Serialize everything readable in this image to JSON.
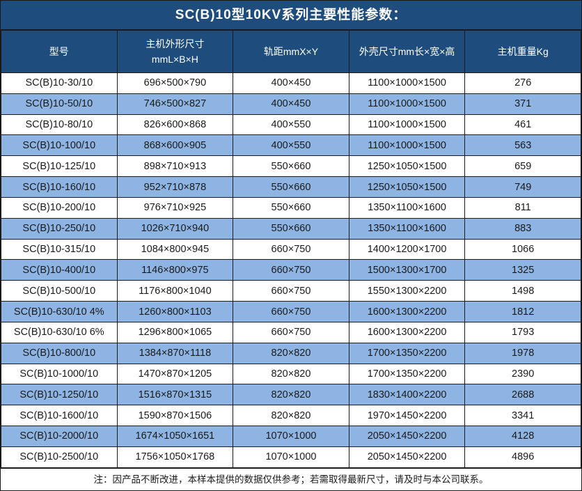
{
  "title": "SC(B)10型10KV系列主要性能参数：",
  "colors": {
    "header_bg": "#1E4C7C",
    "row_bg": "#FFFFFF",
    "row_alt_bg": "#8DB4E2",
    "border": "#1A1A1A",
    "header_text": "#FFFFFF",
    "body_text": "#1A1A1A"
  },
  "table": {
    "columns": [
      {
        "label": "型号",
        "sub": ""
      },
      {
        "label": "主机外形尺寸",
        "sub": "mmL×B×H"
      },
      {
        "label": "轨距mmX×Y",
        "sub": ""
      },
      {
        "label": "外壳尺寸mm长×宽×高",
        "sub": ""
      },
      {
        "label": "主机重量Kg",
        "sub": ""
      }
    ],
    "rows": [
      [
        "SC(B)10-30/10",
        "696×500×790",
        "400×450",
        "1100×1000×1500",
        "276"
      ],
      [
        "SC(B)10-50/10",
        "746×500×827",
        "400×450",
        "1100×1000×1500",
        "371"
      ],
      [
        "SC(B)10-80/10",
        "826×600×868",
        "400×550",
        "1100×1000×1500",
        "461"
      ],
      [
        "SC(B)10-100/10",
        "868×600×905",
        "400×550",
        "1100×1000×1500",
        "563"
      ],
      [
        "SC(B)10-125/10",
        "898×710×913",
        "550×660",
        "1250×1050×1500",
        "659"
      ],
      [
        "SC(B)10-160/10",
        "952×710×878",
        "550×660",
        "1250×1050×1500",
        "749"
      ],
      [
        "SC(B)10-200/10",
        "976×710×925",
        "550×660",
        "1350×1100×1600",
        "811"
      ],
      [
        "SC(B)10-250/10",
        "1026×710×940",
        "550×660",
        "1350×1100×1600",
        "883"
      ],
      [
        "SC(B)10-315/10",
        "1084×800×945",
        "660×750",
        "1400×1200×1700",
        "1066"
      ],
      [
        "SC(B)10-400/10",
        "1146×800×975",
        "660×750",
        "1500×1300×1700",
        "1325"
      ],
      [
        "SC(B)10-500/10",
        "1176×800×1040",
        "660×750",
        "1550×1300×2200",
        "1498"
      ],
      [
        "SC(B)10-630/10 4%",
        "1260×800×1103",
        "660×750",
        "1600×1300×2200",
        "1812"
      ],
      [
        "SC(B)10-630/10 6%",
        "1296×800×1065",
        "660×750",
        "1600×1300×2200",
        "1793"
      ],
      [
        "SC(B)10-800/10",
        "1384×870×1118",
        "820×820",
        "1700×1350×2200",
        "1978"
      ],
      [
        "SC(B)10-1000/10",
        "1470×870×1205",
        "820×820",
        "1700×1350×2200",
        "2390"
      ],
      [
        "SC(B)10-1250/10",
        "1516×870×1315",
        "820×820",
        "1830×1400×2200",
        "2688"
      ],
      [
        "SC(B)10-1600/10",
        "1590×870×1506",
        "820×820",
        "1970×1450×2200",
        "3341"
      ],
      [
        "SC(B)10-2000/10",
        "1674×1050×1651",
        "1070×1000",
        "2050×1450×2200",
        "4128"
      ],
      [
        "SC(B)10-2500/10",
        "1756×1050×1768",
        "1070×1000",
        "2050×1450×2200",
        "4896"
      ]
    ]
  },
  "footer_note": "注：因产品不断改进，本样本提供的数据仅供参考；若需取得最新尺寸，请及时与本公司联系。"
}
